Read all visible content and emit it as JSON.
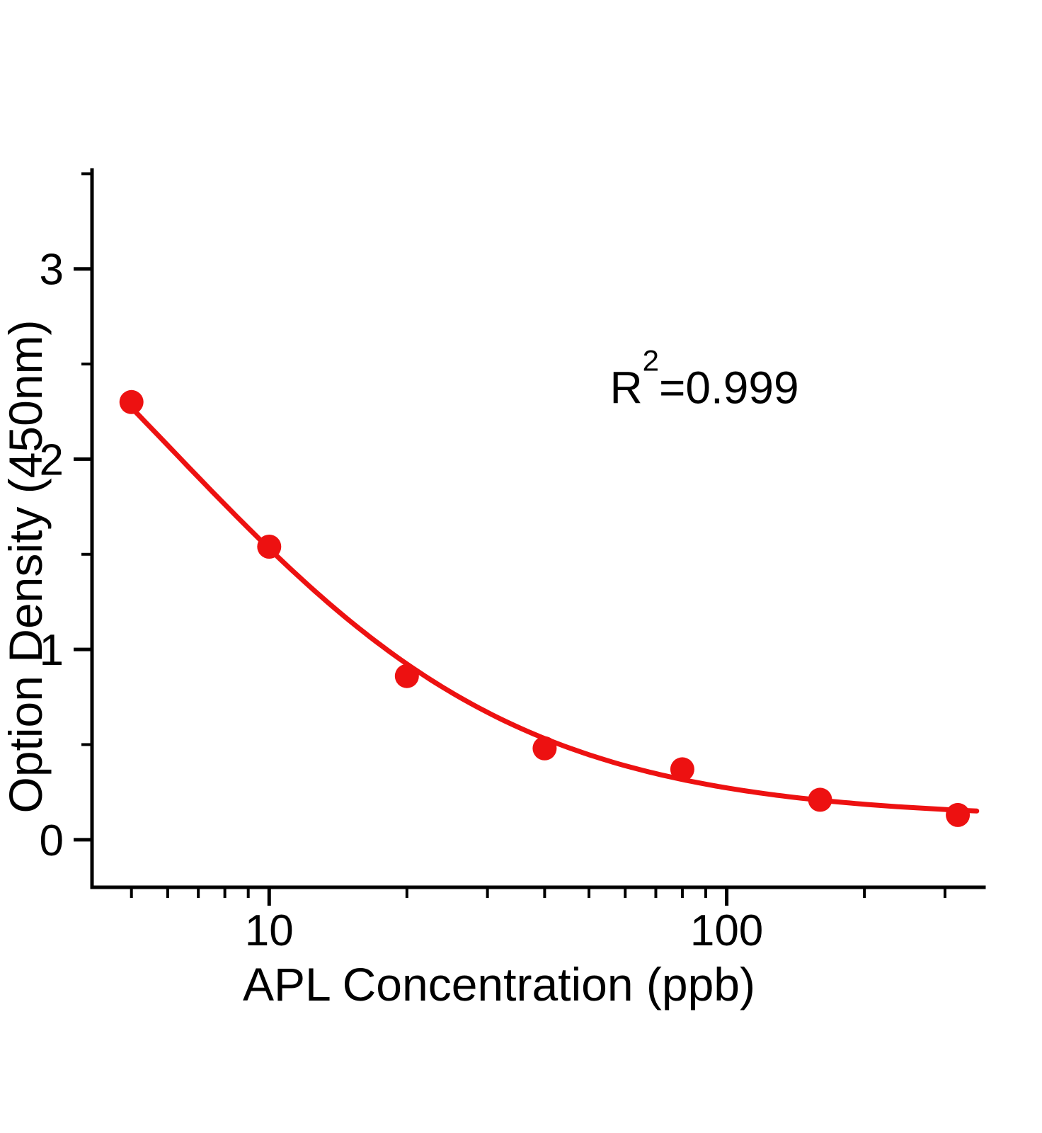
{
  "chart_data": {
    "type": "scatter",
    "title": "",
    "xlabel": "APL Concentration (ppb)",
    "ylabel": "Option Density (450nm)",
    "annotation": {
      "base": "R",
      "exponent": "2",
      "rest": "=0.999"
    },
    "x_scale": "log",
    "y_scale": "linear",
    "x": [
      5,
      10,
      20,
      40,
      80,
      160,
      320
    ],
    "y": [
      2.3,
      1.54,
      0.86,
      0.48,
      0.37,
      0.21,
      0.13
    ],
    "xticks": [
      10,
      100
    ],
    "yticks": [
      0,
      1,
      2,
      3
    ],
    "xlim": [
      4.1,
      365
    ],
    "ylim": [
      -0.25,
      3.52
    ],
    "grid": false,
    "legend": false,
    "point_color": "#ed1111",
    "line_color": "#ed1111",
    "axis_color": "#000000",
    "fit_4pl": {
      "a": 4.0,
      "b": 1.12,
      "c": 6.1,
      "d": 0.11
    }
  }
}
